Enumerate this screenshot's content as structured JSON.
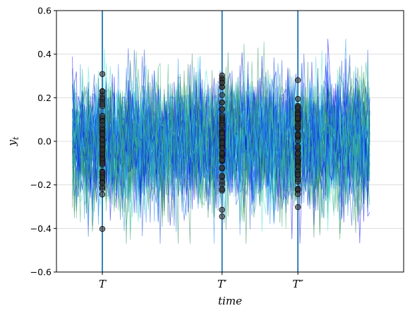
{
  "chart_data": {
    "type": "line",
    "title": "",
    "xlabel": "time",
    "ylabel": "y",
    "ylabel_subscript": "t",
    "ylim": [
      -0.6,
      0.6
    ],
    "yticks": [
      -0.6,
      -0.4,
      -0.2,
      0.0,
      0.2,
      0.4,
      0.6
    ],
    "ytick_labels": [
      "−0.6",
      "−0.4",
      "−0.2",
      "0.0",
      "0.2",
      "0.4",
      "0.6"
    ],
    "xlim": [
      -8,
      166
    ],
    "grid": "horizontal",
    "legend": "none",
    "series_count": 60,
    "time_steps": 150,
    "series_colors": [
      "#0000ff",
      "#1a4fd8",
      "#2e8b57",
      "#40e0d0",
      "#3cb371",
      "#1e90ff"
    ],
    "vertical_markers": [
      {
        "label_main": "T",
        "label_prime": "",
        "t": 15
      },
      {
        "label_main": "T",
        "label_prime": "′",
        "t": 75
      },
      {
        "label_main": "T",
        "label_prime": "″",
        "t": 113
      }
    ],
    "marker_line_color": "#1f77b4",
    "marker_point_color": "#333333",
    "noise_scale": 0.14
  }
}
